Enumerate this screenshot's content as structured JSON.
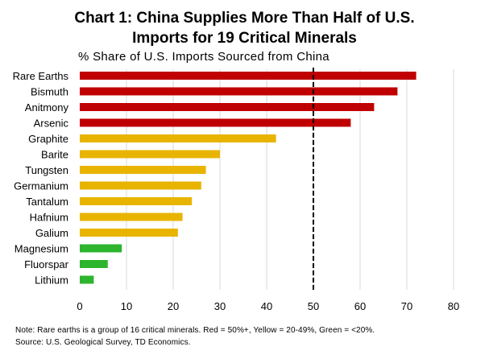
{
  "title_line1": "Chart 1: China Supplies More Than Half of U.S.",
  "title_line2": "Imports for 19 Critical Minerals",
  "subtitle": "% Share of U.S. Imports Sourced from China",
  "note": "Note: Rare earths is a group of 16 critical minerals. Red = 50%+, Yellow = 20-49%, Green = <20%.",
  "source": "Source: U.S. Geological Survey, TD Economics.",
  "colors": {
    "red": "#c00000",
    "yellow": "#e8b400",
    "green": "#2db52d",
    "grid": "#d9d9d9",
    "reference_line": "#000000"
  },
  "chart_data": {
    "type": "bar",
    "orientation": "horizontal",
    "title": "Chart 1: China Supplies More Than Half of U.S. Imports for 19 Critical Minerals",
    "subtitle": "% Share of U.S. Imports Sourced from China",
    "categories": [
      "Rare Earths",
      "Bismuth",
      "Anitmony",
      "Arsenic",
      "Graphite",
      "Barite",
      "Tungsten",
      "Germanium",
      "Tantalum",
      "Hafnium",
      "Galium",
      "Magnesium",
      "Fluorspar",
      "Lithium"
    ],
    "values": [
      72,
      68,
      63,
      58,
      42,
      30,
      27,
      26,
      24,
      22,
      21,
      9,
      6,
      3
    ],
    "bar_colors": [
      "red",
      "red",
      "red",
      "red",
      "yellow",
      "yellow",
      "yellow",
      "yellow",
      "yellow",
      "yellow",
      "yellow",
      "green",
      "green",
      "green"
    ],
    "xlim": [
      0,
      80
    ],
    "xticks": [
      0,
      10,
      20,
      30,
      40,
      50,
      60,
      70,
      80
    ],
    "reference_line": 50,
    "grid": true,
    "xlabel": "",
    "ylabel": ""
  }
}
